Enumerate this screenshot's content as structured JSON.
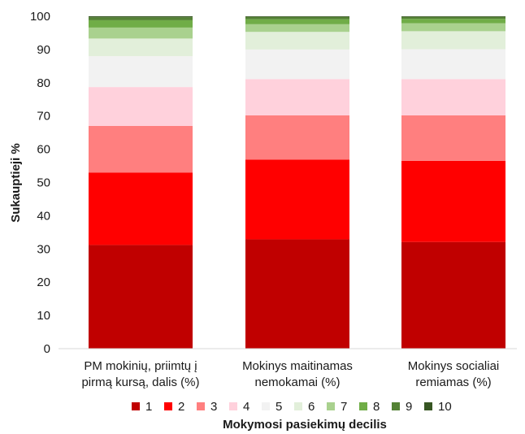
{
  "chart_data": {
    "type": "bar",
    "stacked": true,
    "categories": [
      [
        "PM mokinių, priimtų į",
        "pirmą kursą, dalis (%)"
      ],
      [
        "Mokinys maitinamas",
        "nemokamai (%)"
      ],
      [
        "Mokinys socialiai",
        "remiamas (%)"
      ]
    ],
    "ylabel": "Sukauptieji %",
    "xlabel": "Mokymosi pasiekimų decilis",
    "ylim": [
      0,
      100
    ],
    "yticks": [
      0,
      10,
      20,
      30,
      40,
      50,
      60,
      70,
      80,
      90,
      100
    ],
    "grid": false,
    "legend": "bottom",
    "series": [
      {
        "name": "1",
        "color": "#c00000",
        "values": [
          31.2,
          32.9,
          32.1
        ]
      },
      {
        "name": "2",
        "color": "#ff0000",
        "values": [
          21.8,
          24.0,
          24.4
        ]
      },
      {
        "name": "3",
        "color": "#ff7f7f",
        "values": [
          14.0,
          13.3,
          13.7
        ]
      },
      {
        "name": "4",
        "color": "#ffd1dc",
        "values": [
          11.7,
          10.9,
          10.9
        ]
      },
      {
        "name": "5",
        "color": "#f2f2f2",
        "values": [
          9.3,
          8.9,
          9.0
        ]
      },
      {
        "name": "6",
        "color": "#e2efda",
        "values": [
          5.3,
          5.3,
          5.4
        ]
      },
      {
        "name": "7",
        "color": "#a9d18e",
        "values": [
          3.3,
          2.3,
          2.4
        ]
      },
      {
        "name": "8",
        "color": "#70ad47",
        "values": [
          2.2,
          1.5,
          1.3
        ]
      },
      {
        "name": "9",
        "color": "#548235",
        "values": [
          0.9,
          0.7,
          0.6
        ]
      },
      {
        "name": "10",
        "color": "#375623",
        "values": [
          0.3,
          0.2,
          0.2
        ]
      }
    ]
  }
}
